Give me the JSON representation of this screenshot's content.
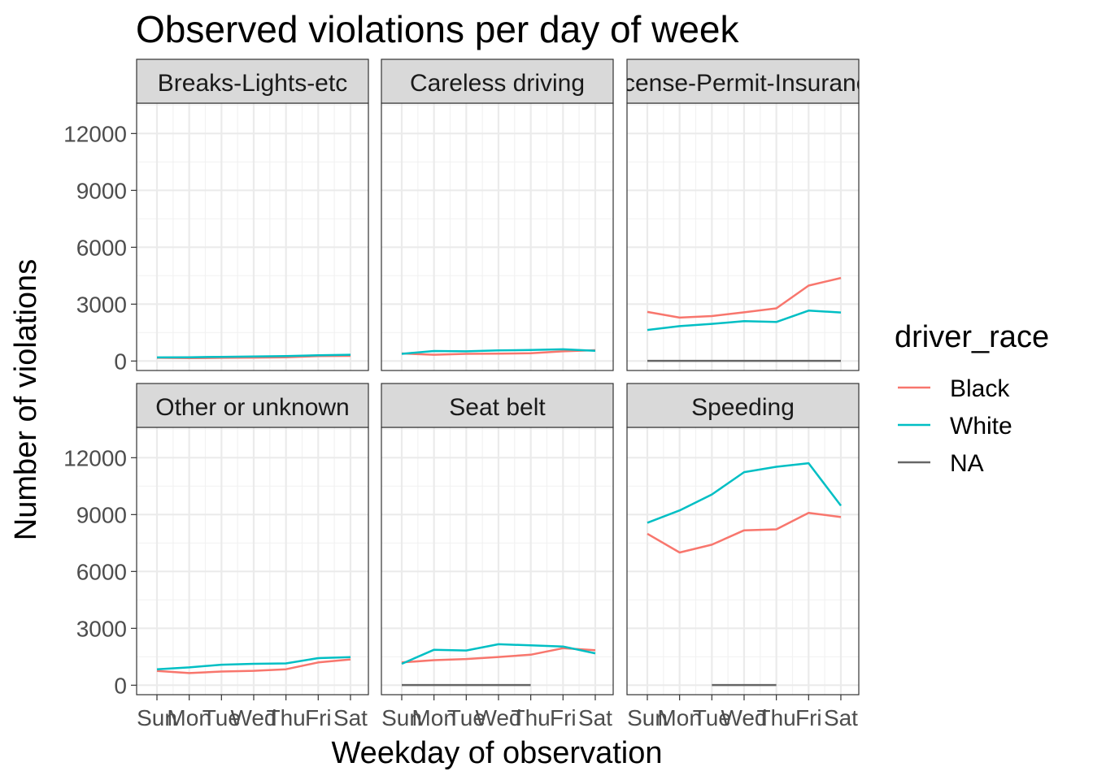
{
  "chart_data": {
    "type": "line",
    "title": "Observed violations per day of week",
    "xlabel": "Weekday of observation",
    "ylabel": "Number of violations",
    "categories": [
      "Sun",
      "Mon",
      "Tue",
      "Wed",
      "Thu",
      "Fri",
      "Sat"
    ],
    "y_ticks": [
      "0",
      "3000",
      "6000",
      "9000",
      "12000"
    ],
    "ylim": [
      -500,
      13600
    ],
    "grid": true,
    "legend": {
      "title": "driver_race",
      "position": "right",
      "entries": [
        {
          "label": "Black",
          "color": "#F8766D"
        },
        {
          "label": "White",
          "color": "#00BFC4"
        },
        {
          "label": "NA",
          "color": "#666666"
        }
      ]
    },
    "panels": [
      {
        "name": "Breaks-Lights-etc",
        "series": [
          {
            "name": "Black",
            "values": [
              170,
              150,
              170,
              180,
              200,
              260,
              270
            ]
          },
          {
            "name": "White",
            "values": [
              190,
              200,
              220,
              240,
              260,
              300,
              330
            ]
          }
        ]
      },
      {
        "name": "Careless driving",
        "series": [
          {
            "name": "Black",
            "values": [
              400,
              330,
              380,
              390,
              410,
              510,
              570
            ]
          },
          {
            "name": "White",
            "values": [
              380,
              530,
              510,
              560,
              580,
              620,
              540
            ]
          }
        ]
      },
      {
        "name": "License-Permit-Insurance",
        "series": [
          {
            "name": "Black",
            "values": [
              2590,
              2290,
              2370,
              2570,
              2780,
              3980,
              4380
            ]
          },
          {
            "name": "White",
            "values": [
              1640,
              1840,
              1960,
              2100,
              2060,
              2660,
              2560
            ]
          },
          {
            "name": "NA",
            "values": [
              10,
              10,
              10,
              10,
              10,
              10,
              10
            ]
          }
        ]
      },
      {
        "name": "Other or unknown",
        "series": [
          {
            "name": "Black",
            "values": [
              750,
              640,
              720,
              760,
              840,
              1200,
              1360
            ]
          },
          {
            "name": "White",
            "values": [
              840,
              940,
              1080,
              1130,
              1150,
              1430,
              1480
            ]
          }
        ]
      },
      {
        "name": "Seat belt",
        "series": [
          {
            "name": "Black",
            "values": [
              1200,
              1320,
              1380,
              1490,
              1610,
              1950,
              1850
            ]
          },
          {
            "name": "White",
            "values": [
              1130,
              1870,
              1830,
              2160,
              2100,
              2040,
              1680
            ]
          },
          {
            "name": "NA",
            "values": [
              10,
              10,
              10,
              10,
              10,
              null,
              null
            ]
          }
        ]
      },
      {
        "name": "Speeding",
        "series": [
          {
            "name": "Black",
            "values": [
              7990,
              7000,
              7410,
              8170,
              8220,
              9090,
              8870
            ]
          },
          {
            "name": "White",
            "values": [
              8570,
              9220,
              10060,
              11240,
              11520,
              11710,
              9470
            ]
          },
          {
            "name": "NA",
            "values": [
              null,
              null,
              10,
              10,
              10,
              null,
              null
            ]
          }
        ]
      }
    ]
  }
}
